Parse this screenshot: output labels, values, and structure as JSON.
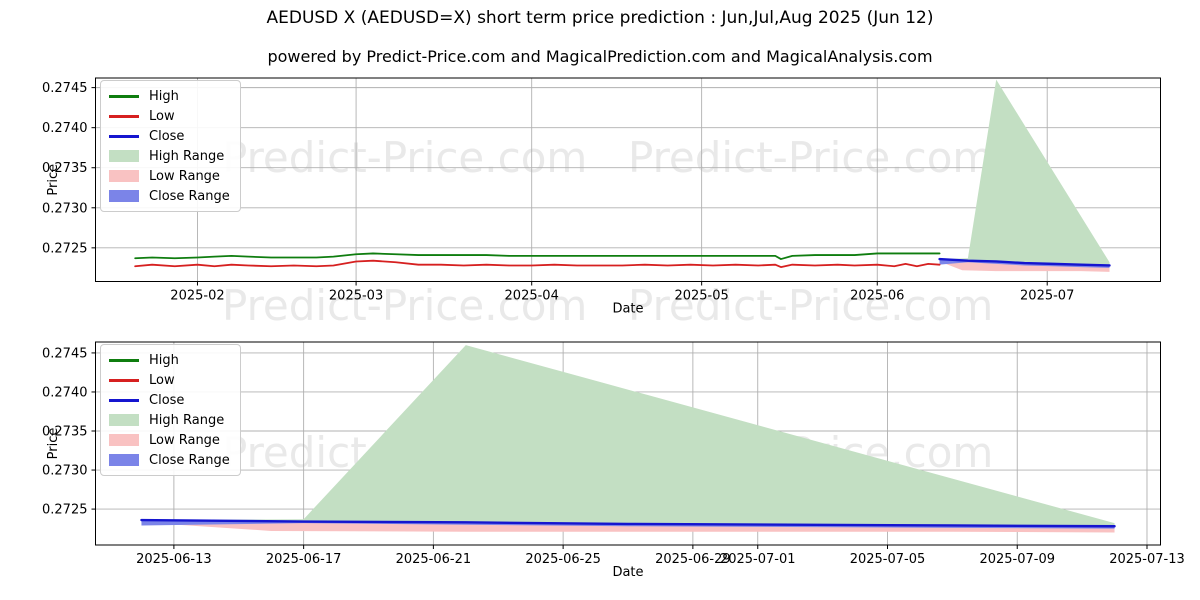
{
  "title": "AEDUSD X (AEDUSD=X) short term price prediction : Jun,Jul,Aug 2025 (Jun 12)",
  "subtitle": "powered by Predict-Price.com and MagicalPrediction.com and MagicalAnalysis.com",
  "watermark": {
    "text": "Predict-Price.com",
    "color": "#e9e9e9"
  },
  "colors": {
    "high_line": "#0f7d0f",
    "low_line": "#d62020",
    "close_line": "#1515cf",
    "high_range_fill": "#c3dfc3",
    "low_range_fill": "#f9c2c2",
    "close_range_fill": "#7b84e8",
    "grid": "#b0b0b0",
    "spine": "#000000"
  },
  "legend": {
    "items": [
      {
        "label": "High",
        "type": "line",
        "color": "#0f7d0f"
      },
      {
        "label": "Low",
        "type": "line",
        "color": "#d62020"
      },
      {
        "label": "Close",
        "type": "line",
        "color": "#1515cf"
      },
      {
        "label": "High Range",
        "type": "patch",
        "color": "#c3dfc3"
      },
      {
        "label": "Low Range",
        "type": "patch",
        "color": "#f9c2c2"
      },
      {
        "label": "Close Range",
        "type": "patch",
        "color": "#7b84e8"
      }
    ]
  },
  "chart_data": [
    {
      "type": "line",
      "name": "full-history-with-prediction",
      "xlabel": "Date",
      "ylabel": "Price",
      "xlim": [
        "2025-01-14",
        "2025-07-21"
      ],
      "ylim": [
        0.27208,
        0.27462
      ],
      "grid": true,
      "legend_position": "upper-left",
      "xticks": [
        {
          "d": "2025-02-01",
          "label": "2025-02"
        },
        {
          "d": "2025-03-01",
          "label": "2025-03"
        },
        {
          "d": "2025-04-01",
          "label": "2025-04"
        },
        {
          "d": "2025-05-01",
          "label": "2025-05"
        },
        {
          "d": "2025-06-01",
          "label": "2025-06"
        },
        {
          "d": "2025-07-01",
          "label": "2025-07"
        }
      ],
      "yticks": [
        {
          "v": 0.2725,
          "label": "0.2725"
        },
        {
          "v": 0.273,
          "label": "0.2730"
        },
        {
          "v": 0.2735,
          "label": "0.2735"
        },
        {
          "v": 0.274,
          "label": "0.2740"
        },
        {
          "v": 0.2745,
          "label": "0.2745"
        }
      ],
      "bands": [
        {
          "name": "High Range",
          "color": "#c3dfc3",
          "x": [
            "2025-06-12",
            "2025-06-17",
            "2025-06-22",
            "2025-07-12"
          ],
          "upper": [
            0.27236,
            0.27237,
            0.2746,
            0.27232
          ],
          "lower": [
            0.27236,
            0.27234,
            0.27233,
            0.27228
          ]
        },
        {
          "name": "Low Range",
          "color": "#f9c2c2",
          "x": [
            "2025-06-12",
            "2025-06-16",
            "2025-06-22",
            "2025-06-27",
            "2025-07-02",
            "2025-07-07",
            "2025-07-12"
          ],
          "upper": [
            0.27236,
            0.27234,
            0.27233,
            0.27231,
            0.2723,
            0.27229,
            0.27228
          ],
          "lower": [
            0.27233,
            0.27222,
            0.27221,
            0.27221,
            0.27221,
            0.27221,
            0.2722
          ]
        },
        {
          "name": "Close Range",
          "color": "#7b84e8",
          "x": [
            "2025-06-12",
            "2025-06-17",
            "2025-06-22",
            "2025-06-27",
            "2025-07-02",
            "2025-07-07",
            "2025-07-12"
          ],
          "upper": [
            0.27237,
            0.27235,
            0.27234,
            0.27232,
            0.27231,
            0.2723,
            0.27229
          ],
          "lower": [
            0.27229,
            0.27232,
            0.2723,
            0.27228,
            0.27227,
            0.27226,
            0.27225
          ]
        }
      ],
      "series": [
        {
          "name": "High",
          "color": "#0f7d0f",
          "width": 1.8,
          "x": [
            "2025-01-21",
            "2025-01-24",
            "2025-01-28",
            "2025-02-01",
            "2025-02-04",
            "2025-02-07",
            "2025-02-10",
            "2025-02-14",
            "2025-02-18",
            "2025-02-22",
            "2025-02-25",
            "2025-03-01",
            "2025-03-04",
            "2025-03-08",
            "2025-03-12",
            "2025-03-16",
            "2025-03-20",
            "2025-03-24",
            "2025-03-28",
            "2025-04-01",
            "2025-04-05",
            "2025-04-09",
            "2025-04-13",
            "2025-04-17",
            "2025-04-21",
            "2025-04-25",
            "2025-04-29",
            "2025-05-03",
            "2025-05-07",
            "2025-05-11",
            "2025-05-14",
            "2025-05-15",
            "2025-05-17",
            "2025-05-21",
            "2025-05-25",
            "2025-05-28",
            "2025-06-01",
            "2025-06-04",
            "2025-06-06",
            "2025-06-08",
            "2025-06-10",
            "2025-06-12"
          ],
          "y": [
            0.27237,
            0.27238,
            0.27237,
            0.27238,
            0.27239,
            0.2724,
            0.27239,
            0.27238,
            0.27238,
            0.27238,
            0.27239,
            0.27242,
            0.27243,
            0.27242,
            0.27241,
            0.27241,
            0.27241,
            0.27241,
            0.2724,
            0.2724,
            0.2724,
            0.2724,
            0.2724,
            0.2724,
            0.2724,
            0.2724,
            0.2724,
            0.2724,
            0.2724,
            0.2724,
            0.2724,
            0.27236,
            0.2724,
            0.27241,
            0.27241,
            0.27241,
            0.27243,
            0.27243,
            0.27243,
            0.27243,
            0.27243,
            0.27243
          ]
        },
        {
          "name": "Low",
          "color": "#d62020",
          "width": 1.8,
          "x": [
            "2025-01-21",
            "2025-01-24",
            "2025-01-28",
            "2025-02-01",
            "2025-02-04",
            "2025-02-07",
            "2025-02-10",
            "2025-02-14",
            "2025-02-18",
            "2025-02-22",
            "2025-02-25",
            "2025-03-01",
            "2025-03-04",
            "2025-03-08",
            "2025-03-12",
            "2025-03-16",
            "2025-03-20",
            "2025-03-24",
            "2025-03-28",
            "2025-04-01",
            "2025-04-05",
            "2025-04-09",
            "2025-04-13",
            "2025-04-17",
            "2025-04-21",
            "2025-04-25",
            "2025-04-29",
            "2025-05-03",
            "2025-05-07",
            "2025-05-11",
            "2025-05-14",
            "2025-05-15",
            "2025-05-17",
            "2025-05-21",
            "2025-05-25",
            "2025-05-28",
            "2025-06-01",
            "2025-06-04",
            "2025-06-06",
            "2025-06-08",
            "2025-06-10",
            "2025-06-12"
          ],
          "y": [
            0.27227,
            0.27229,
            0.27227,
            0.27229,
            0.27227,
            0.27229,
            0.27228,
            0.27227,
            0.27228,
            0.27227,
            0.27228,
            0.27233,
            0.27234,
            0.27232,
            0.27229,
            0.27229,
            0.27228,
            0.27229,
            0.27228,
            0.27228,
            0.27229,
            0.27228,
            0.27228,
            0.27228,
            0.27229,
            0.27228,
            0.27229,
            0.27228,
            0.27229,
            0.27228,
            0.27229,
            0.27226,
            0.27229,
            0.27228,
            0.27229,
            0.27228,
            0.27229,
            0.27227,
            0.2723,
            0.27227,
            0.2723,
            0.27229
          ]
        },
        {
          "name": "Close",
          "color": "#1515cf",
          "width": 2.4,
          "x": [
            "2025-06-12",
            "2025-06-17",
            "2025-06-22",
            "2025-06-27",
            "2025-07-02",
            "2025-07-07",
            "2025-07-12"
          ],
          "y": [
            0.27236,
            0.27234,
            0.27233,
            0.27231,
            0.2723,
            0.27229,
            0.27228
          ]
        }
      ]
    },
    {
      "type": "line",
      "name": "prediction-zoom",
      "xlabel": "Date",
      "ylabel": "Price",
      "xlim": [
        "2025-06-10T14:00:00",
        "2025-07-13T10:00:00"
      ],
      "ylim": [
        0.27204,
        0.27464
      ],
      "grid": true,
      "legend_position": "upper-left",
      "xticks": [
        {
          "d": "2025-06-13",
          "label": "2025-06-13"
        },
        {
          "d": "2025-06-17",
          "label": "2025-06-17"
        },
        {
          "d": "2025-06-21",
          "label": "2025-06-21"
        },
        {
          "d": "2025-06-25",
          "label": "2025-06-25"
        },
        {
          "d": "2025-06-29",
          "label": "2025-06-29"
        },
        {
          "d": "2025-07-01",
          "label": "2025-07-01"
        },
        {
          "d": "2025-07-05",
          "label": "2025-07-05"
        },
        {
          "d": "2025-07-09",
          "label": "2025-07-09"
        },
        {
          "d": "2025-07-13",
          "label": "2025-07-13"
        }
      ],
      "yticks": [
        {
          "v": 0.2725,
          "label": "0.2725"
        },
        {
          "v": 0.273,
          "label": "0.2730"
        },
        {
          "v": 0.2735,
          "label": "0.2735"
        },
        {
          "v": 0.274,
          "label": "0.2740"
        },
        {
          "v": 0.2745,
          "label": "0.2745"
        }
      ],
      "bands": [
        {
          "name": "High Range",
          "color": "#c3dfc3",
          "x": [
            "2025-06-12",
            "2025-06-17",
            "2025-06-22",
            "2025-07-12"
          ],
          "upper": [
            0.27236,
            0.27237,
            0.2746,
            0.27232
          ],
          "lower": [
            0.27236,
            0.27234,
            0.27233,
            0.27228
          ]
        },
        {
          "name": "Low Range",
          "color": "#f9c2c2",
          "x": [
            "2025-06-12",
            "2025-06-16",
            "2025-06-22",
            "2025-06-27",
            "2025-07-02",
            "2025-07-07",
            "2025-07-12"
          ],
          "upper": [
            0.27236,
            0.27234,
            0.27233,
            0.27231,
            0.2723,
            0.27229,
            0.27228
          ],
          "lower": [
            0.27233,
            0.27222,
            0.27221,
            0.27221,
            0.27221,
            0.27221,
            0.2722
          ]
        },
        {
          "name": "Close Range",
          "color": "#7b84e8",
          "x": [
            "2025-06-12",
            "2025-06-17",
            "2025-06-22",
            "2025-06-27",
            "2025-07-02",
            "2025-07-07",
            "2025-07-12"
          ],
          "upper": [
            0.27237,
            0.27235,
            0.27234,
            0.27232,
            0.27231,
            0.2723,
            0.27229
          ],
          "lower": [
            0.27229,
            0.27232,
            0.2723,
            0.27228,
            0.27227,
            0.27226,
            0.27225
          ]
        }
      ],
      "series": [
        {
          "name": "Close",
          "color": "#1515cf",
          "width": 2.4,
          "x": [
            "2025-06-12",
            "2025-06-17",
            "2025-06-22",
            "2025-06-27",
            "2025-07-02",
            "2025-07-07",
            "2025-07-12"
          ],
          "y": [
            0.27236,
            0.27234,
            0.27233,
            0.27231,
            0.2723,
            0.27229,
            0.27228
          ]
        }
      ]
    }
  ]
}
